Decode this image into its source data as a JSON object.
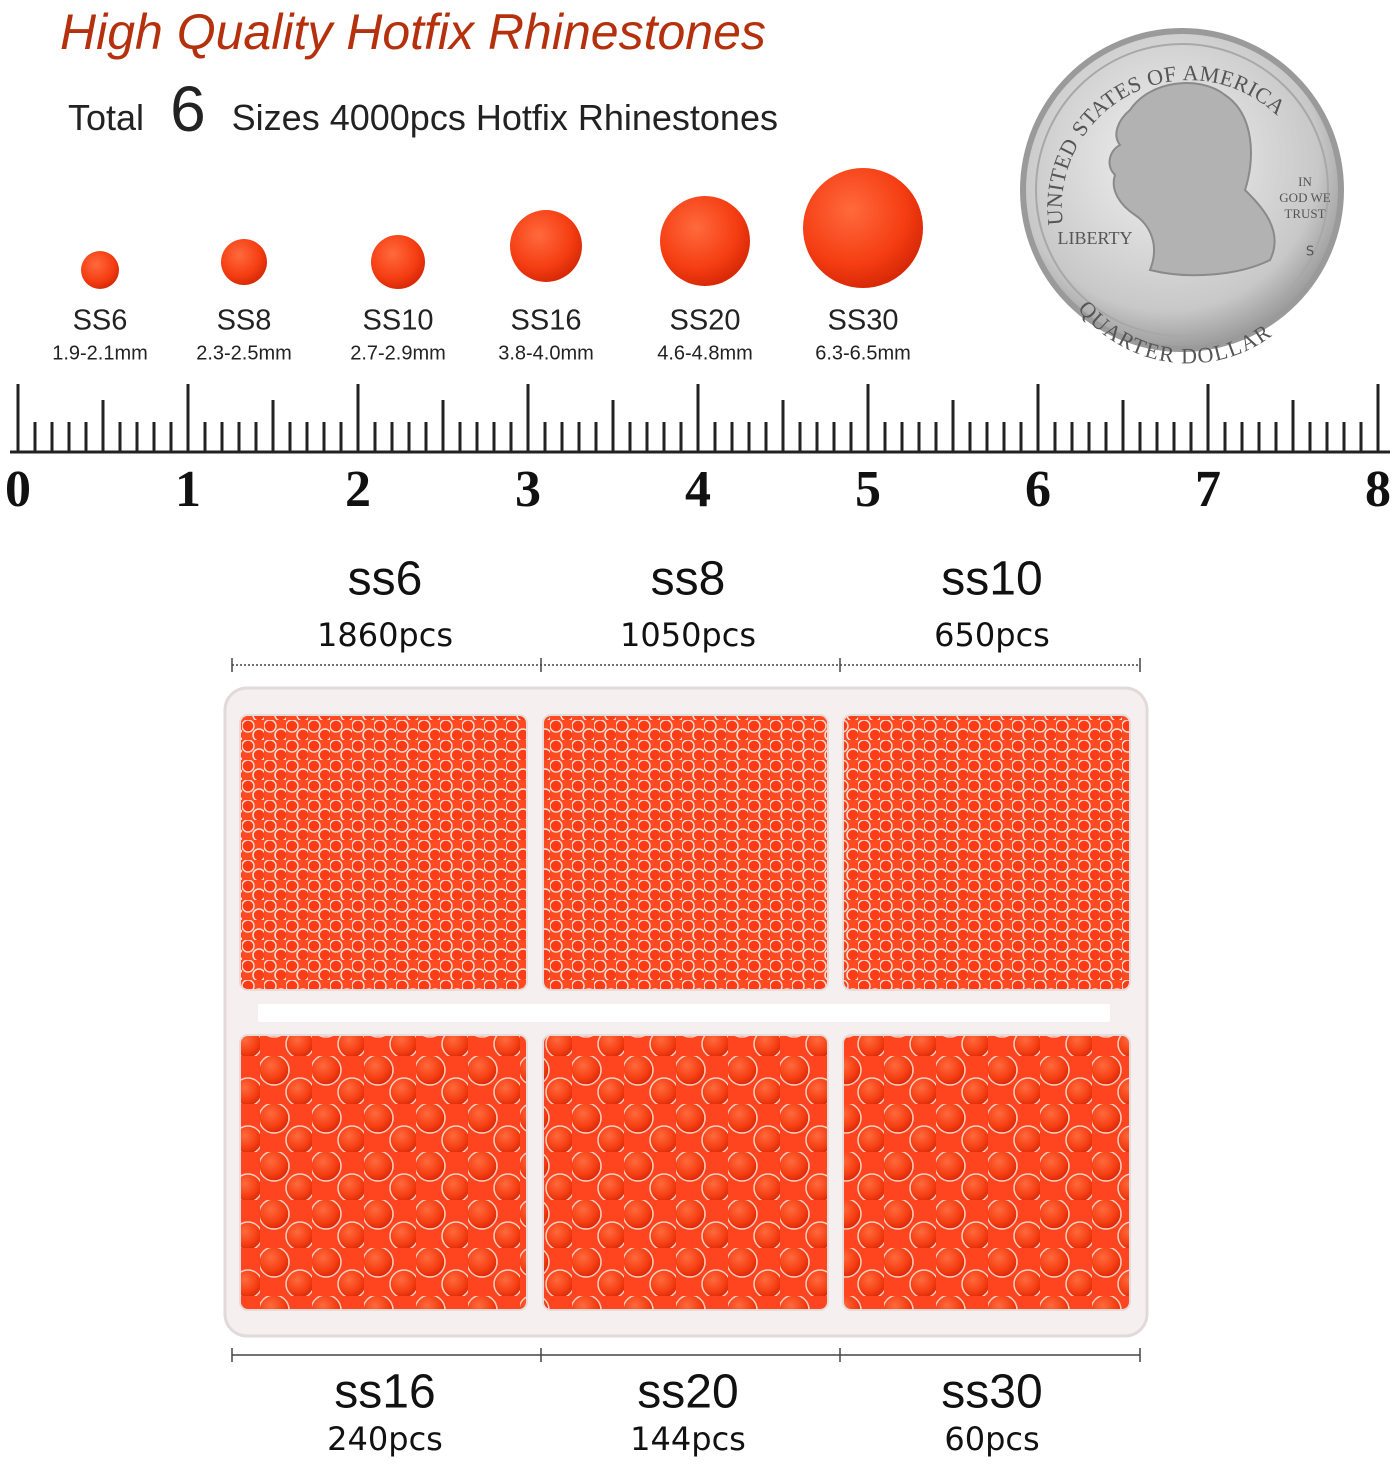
{
  "header": {
    "title": "High Quality Hotfix Rhinestones",
    "total_prefix": "Total",
    "total_count": "6",
    "total_suffix": "Sizes 4000pcs Hotfix Rhinestones"
  },
  "sizes": [
    {
      "name": "SS6",
      "diameter": "1.9-2.1mm"
    },
    {
      "name": "SS8",
      "diameter": "2.3-2.5mm"
    },
    {
      "name": "SS10",
      "diameter": "2.7-2.9mm"
    },
    {
      "name": "SS16",
      "diameter": "3.8-4.0mm"
    },
    {
      "name": "SS20",
      "diameter": "4.6-4.8mm"
    },
    {
      "name": "SS30",
      "diameter": "6.3-6.5mm"
    }
  ],
  "coin": {
    "legend": "UNITED STATES OF AMERICA",
    "motto": [
      "IN",
      "GOD WE",
      "TRUST"
    ],
    "liberty": "LIBERTY",
    "denomination": "QUARTER DOLLAR",
    "mint": "S"
  },
  "ruler": {
    "labels": [
      0,
      1,
      2,
      3,
      4,
      5,
      6,
      7,
      8
    ]
  },
  "box": {
    "compartments": [
      {
        "size": "ss6",
        "count": "1860pcs"
      },
      {
        "size": "ss8",
        "count": "1050pcs"
      },
      {
        "size": "ss10",
        "count": "650pcs"
      },
      {
        "size": "ss16",
        "count": "240pcs"
      },
      {
        "size": "ss20",
        "count": "144pcs"
      },
      {
        "size": "ss30",
        "count": "60pcs"
      }
    ]
  }
}
